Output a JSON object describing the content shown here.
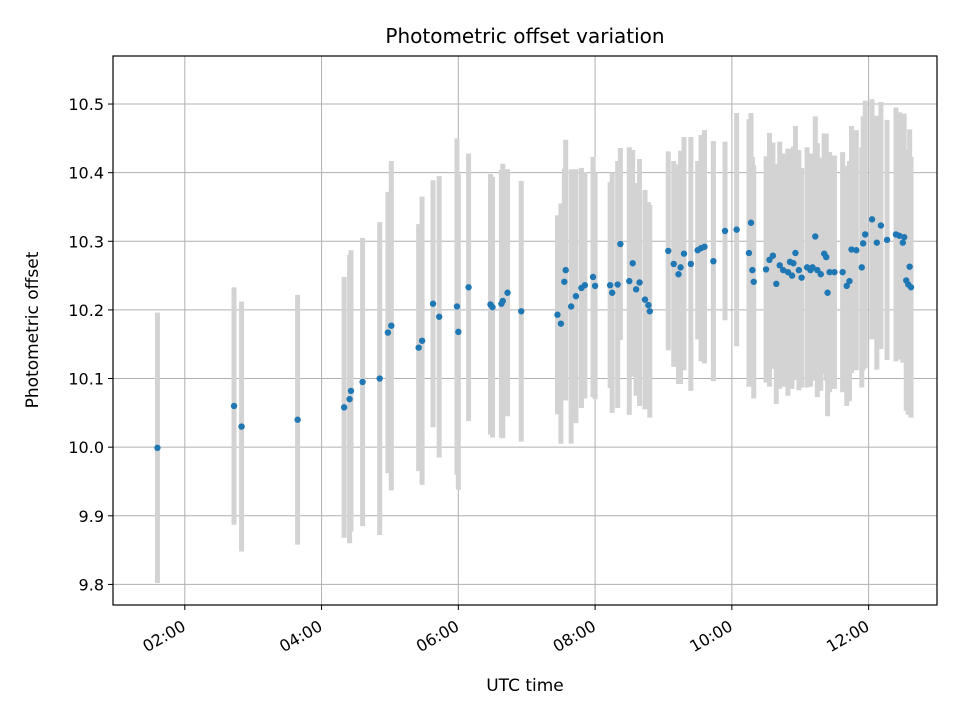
{
  "chart_data": {
    "type": "scatter",
    "title": "Photometric offset variation",
    "xlabel": "UTC time",
    "ylabel": "Photometric offset",
    "x_unit": "hours UTC",
    "xlim": [
      0.95,
      13.0
    ],
    "ylim": [
      9.77,
      10.57
    ],
    "x_ticks": [
      {
        "value": 2,
        "label": "02:00"
      },
      {
        "value": 4,
        "label": "04:00"
      },
      {
        "value": 6,
        "label": "06:00"
      },
      {
        "value": 8,
        "label": "08:00"
      },
      {
        "value": 10,
        "label": "10:00"
      },
      {
        "value": 12,
        "label": "12:00"
      }
    ],
    "y_ticks": [
      {
        "value": 9.8,
        "label": "9.8"
      },
      {
        "value": 9.9,
        "label": "9.9"
      },
      {
        "value": 10.0,
        "label": "10.0"
      },
      {
        "value": 10.1,
        "label": "10.1"
      },
      {
        "value": 10.2,
        "label": "10.2"
      },
      {
        "value": 10.3,
        "label": "10.3"
      },
      {
        "value": 10.4,
        "label": "10.4"
      },
      {
        "value": 10.5,
        "label": "10.5"
      }
    ],
    "grid": true,
    "marker_color": "#1f77b4",
    "errorbar_color": "#d3d3d3",
    "series": [
      {
        "name": "offset",
        "x": [
          1.6,
          2.72,
          2.83,
          3.65,
          4.33,
          4.41,
          4.43,
          4.6,
          4.85,
          4.97,
          5.02,
          5.42,
          5.47,
          5.63,
          5.72,
          5.98,
          6.0,
          6.15,
          6.47,
          6.5,
          6.63,
          6.65,
          6.72,
          6.92,
          7.45,
          7.5,
          7.55,
          7.57,
          7.65,
          7.72,
          7.8,
          7.85,
          7.97,
          8.0,
          8.22,
          8.25,
          8.33,
          8.37,
          8.5,
          8.55,
          8.6,
          8.65,
          8.73,
          8.78,
          8.8,
          9.07,
          9.15,
          9.22,
          9.25,
          9.3,
          9.4,
          9.5,
          9.55,
          9.6,
          9.73,
          9.9,
          10.07,
          10.25,
          10.28,
          10.3,
          10.32,
          10.5,
          10.55,
          10.6,
          10.65,
          10.7,
          10.75,
          10.82,
          10.85,
          10.88,
          10.9,
          10.93,
          10.98,
          11.02,
          11.1,
          11.15,
          11.18,
          11.22,
          11.25,
          11.3,
          11.35,
          11.38,
          11.4,
          11.43,
          11.5,
          11.62,
          11.68,
          11.72,
          11.75,
          11.82,
          11.9,
          11.92,
          11.95,
          12.05,
          12.12,
          12.18,
          12.27,
          12.4,
          12.45,
          12.5,
          12.52,
          12.55,
          12.58,
          12.6,
          12.62
        ],
        "y": [
          9.999,
          10.06,
          10.03,
          10.04,
          10.058,
          10.07,
          10.082,
          10.095,
          10.1,
          10.167,
          10.177,
          10.145,
          10.155,
          10.209,
          10.19,
          10.205,
          10.168,
          10.233,
          10.208,
          10.204,
          10.209,
          10.213,
          10.225,
          10.198,
          10.193,
          10.18,
          10.241,
          10.258,
          10.205,
          10.22,
          10.232,
          10.236,
          10.248,
          10.235,
          10.236,
          10.225,
          10.237,
          10.296,
          10.242,
          10.268,
          10.23,
          10.24,
          10.215,
          10.207,
          10.198,
          10.286,
          10.267,
          10.252,
          10.262,
          10.282,
          10.267,
          10.287,
          10.29,
          10.292,
          10.271,
          10.315,
          10.317,
          10.283,
          10.327,
          10.258,
          10.241,
          10.259,
          10.273,
          10.279,
          10.238,
          10.265,
          10.258,
          10.255,
          10.27,
          10.25,
          10.268,
          10.283,
          10.258,
          10.247,
          10.262,
          10.258,
          10.262,
          10.307,
          10.258,
          10.252,
          10.282,
          10.277,
          10.225,
          10.255,
          10.255,
          10.255,
          10.235,
          10.242,
          10.288,
          10.287,
          10.262,
          10.297,
          10.31,
          10.332,
          10.298,
          10.323,
          10.302,
          10.31,
          10.308,
          10.298,
          10.306,
          10.243,
          10.237,
          10.263,
          10.233
        ],
        "yerr": [
          0.197,
          0.173,
          0.182,
          0.182,
          0.19,
          0.21,
          0.205,
          0.21,
          0.228,
          0.205,
          0.24,
          0.18,
          0.21,
          0.18,
          0.205,
          0.245,
          0.23,
          0.195,
          0.19,
          0.19,
          0.195,
          0.2,
          0.18,
          0.19,
          0.145,
          0.175,
          0.165,
          0.19,
          0.2,
          0.185,
          0.175,
          0.165,
          0.175,
          0.165,
          0.15,
          0.175,
          0.18,
          0.14,
          0.195,
          0.165,
          0.155,
          0.18,
          0.16,
          0.15,
          0.155,
          0.145,
          0.15,
          0.16,
          0.17,
          0.17,
          0.185,
          0.13,
          0.165,
          0.17,
          0.175,
          0.13,
          0.17,
          0.195,
          0.16,
          0.165,
          0.17,
          0.165,
          0.185,
          0.165,
          0.175,
          0.18,
          0.17,
          0.18,
          0.165,
          0.165,
          0.17,
          0.185,
          0.175,
          0.16,
          0.175,
          0.17,
          0.165,
          0.175,
          0.185,
          0.17,
          0.175,
          0.18,
          0.18,
          0.175,
          0.17,
          0.175,
          0.175,
          0.175,
          0.18,
          0.175,
          0.175,
          0.185,
          0.195,
          0.175,
          0.185,
          0.18,
          0.175,
          0.185,
          0.18,
          0.175,
          0.18,
          0.19,
          0.19,
          0.2,
          0.19
        ]
      }
    ]
  }
}
